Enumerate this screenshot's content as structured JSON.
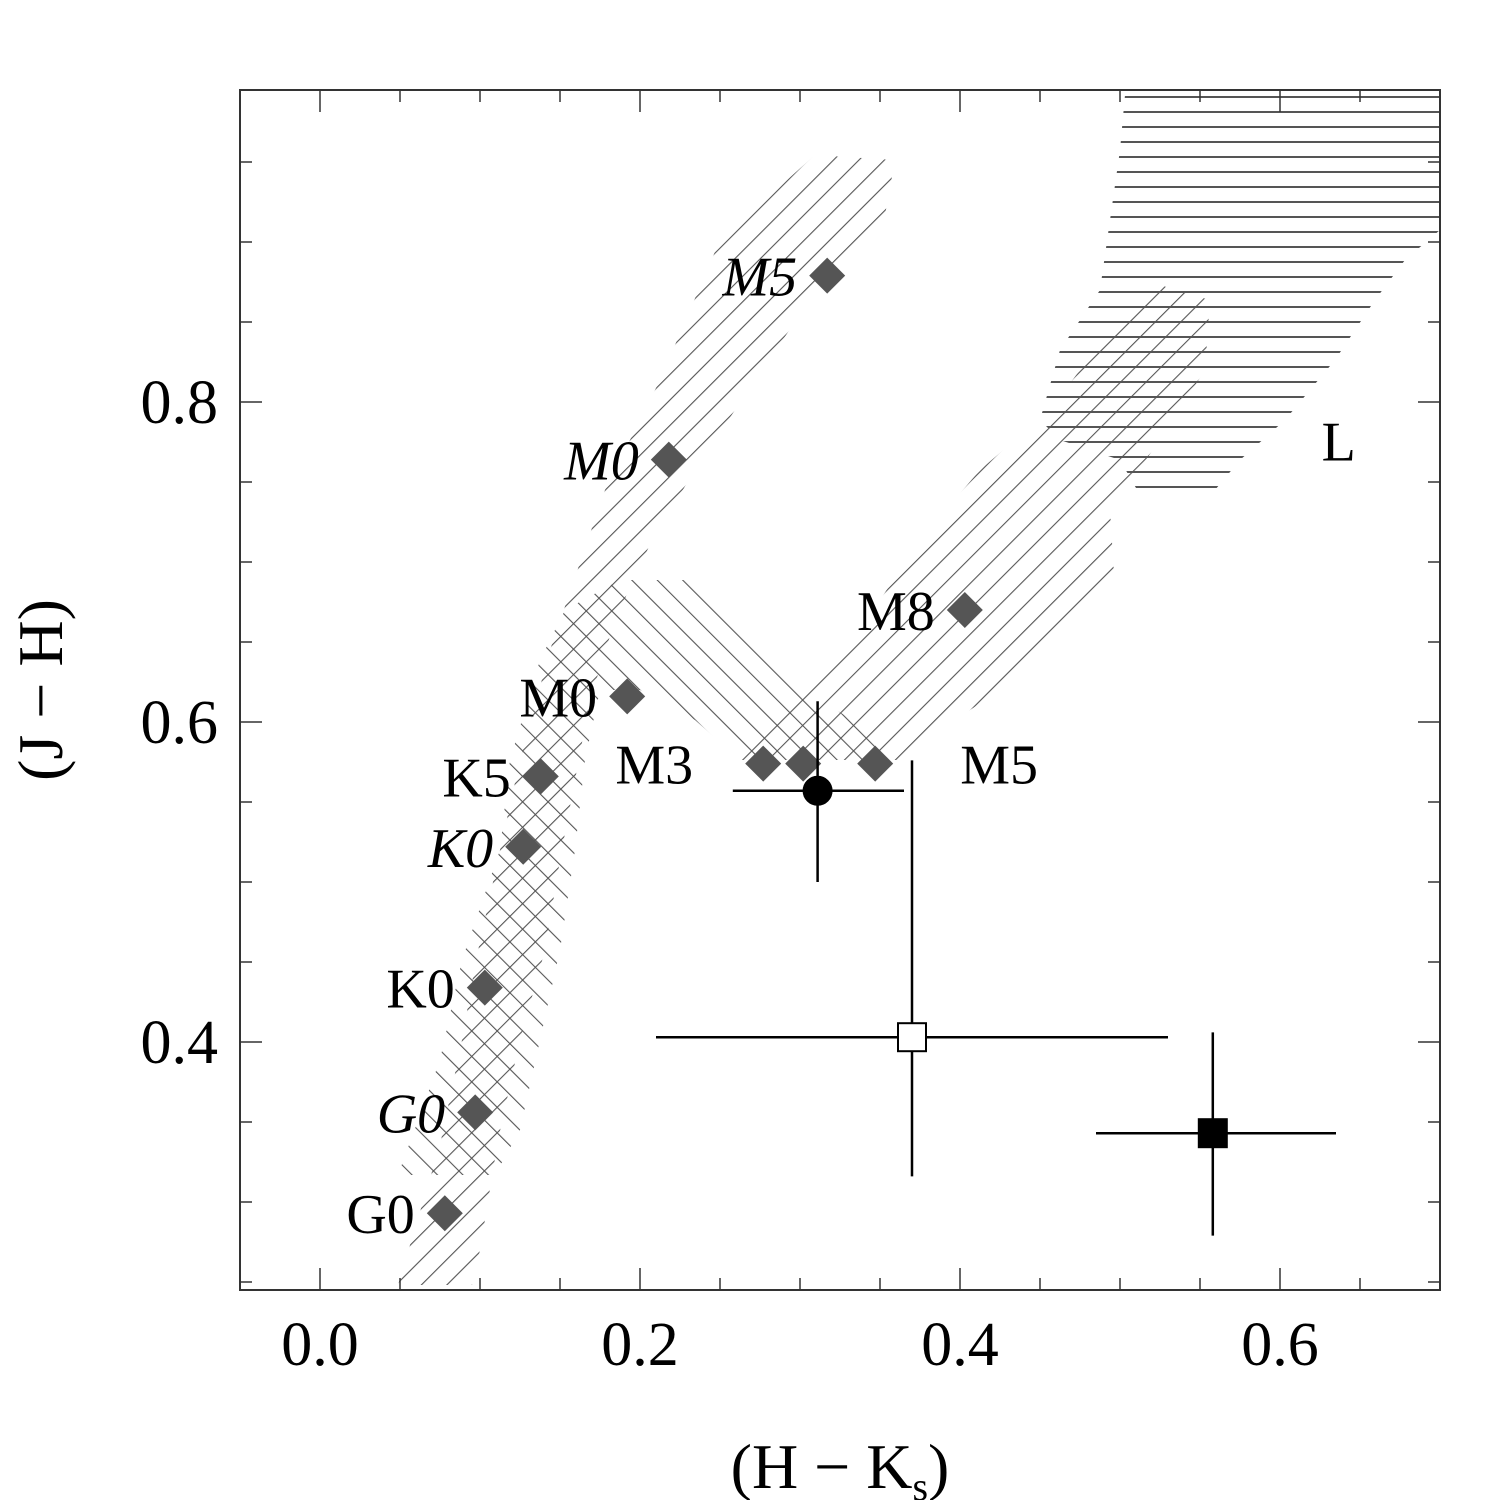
{
  "chart_data": {
    "type": "scatter",
    "title": "",
    "xlabel_main": "(H − K",
    "xlabel_sub": "s",
    "xlabel_end": ")",
    "ylabel": "(J − H)",
    "xlim": [
      -0.05,
      0.7
    ],
    "ylim": [
      0.245,
      0.995
    ],
    "x_ticks": [
      0.0,
      0.2,
      0.4,
      0.6
    ],
    "x_tick_labels": [
      "0.0",
      "0.2",
      "0.4",
      "0.6"
    ],
    "y_ticks": [
      0.4,
      0.6,
      0.8
    ],
    "y_tick_labels": [
      "0.4",
      "0.6",
      "0.8"
    ],
    "x_minor_step": 0.05,
    "y_minor_step": 0.05,
    "grid": false,
    "legend": "none",
    "marker_color": "#555555",
    "hatch_color": "#555555",
    "sequence_points": [
      {
        "label": "G0",
        "italic": false,
        "x": 0.078,
        "y": 0.293
      },
      {
        "label": "G0",
        "italic": true,
        "x": 0.097,
        "y": 0.356
      },
      {
        "label": "K0",
        "italic": false,
        "x": 0.103,
        "y": 0.434
      },
      {
        "label": "K0",
        "italic": true,
        "x": 0.127,
        "y": 0.522
      },
      {
        "label": "K5",
        "italic": false,
        "x": 0.138,
        "y": 0.566
      },
      {
        "label": "M0",
        "italic": false,
        "x": 0.192,
        "y": 0.616
      },
      {
        "label": "M0",
        "italic": true,
        "x": 0.218,
        "y": 0.764
      },
      {
        "label": "M5",
        "italic": true,
        "x": 0.317,
        "y": 0.879
      },
      {
        "label": "M3",
        "italic": false,
        "x": 0.277,
        "y": 0.574
      },
      {
        "label": "",
        "italic": false,
        "x": 0.302,
        "y": 0.574
      },
      {
        "label": "M5",
        "italic": false,
        "x": 0.347,
        "y": 0.574
      },
      {
        "label": "M8",
        "italic": false,
        "x": 0.403,
        "y": 0.67
      }
    ],
    "region_labels": [
      {
        "label": "L",
        "x": 0.626,
        "y": 0.776
      }
    ],
    "observed_points": [
      {
        "name": "filled-circle",
        "marker": "circle",
        "filled": true,
        "x": 0.311,
        "y": 0.557,
        "xerr": [
          0.258,
          0.365
        ],
        "yerr": [
          0.5,
          0.613
        ]
      },
      {
        "name": "open-square",
        "marker": "square",
        "filled": false,
        "x": 0.37,
        "y": 0.403,
        "xerr": [
          0.21,
          0.53
        ],
        "yerr": [
          0.316,
          0.576
        ]
      },
      {
        "name": "filled-square",
        "marker": "square",
        "filled": true,
        "x": 0.558,
        "y": 0.343,
        "xerr": [
          0.485,
          0.635
        ],
        "yerr": [
          0.279,
          0.406
        ]
      }
    ]
  }
}
